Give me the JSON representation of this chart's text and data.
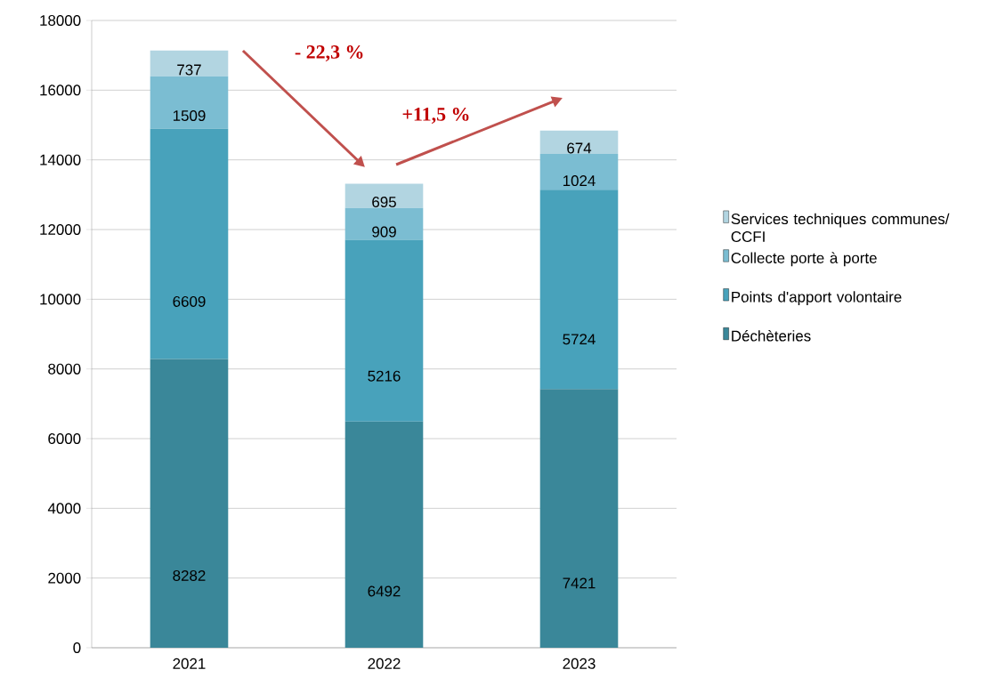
{
  "chart_data": {
    "type": "bar",
    "stacked": true,
    "categories": [
      "2021",
      "2022",
      "2023"
    ],
    "series": [
      {
        "name": "Déchèteries",
        "color": "#3a8799",
        "values": [
          8282,
          6492,
          7421
        ]
      },
      {
        "name": "Points d'apport volontaire",
        "color": "#48a2bb",
        "values": [
          6609,
          5216,
          5724
        ]
      },
      {
        "name": "Collecte porte à porte",
        "color": "#7bbdd2",
        "values": [
          1509,
          909,
          1024
        ]
      },
      {
        "name": "Services techniques communes/ CCFI",
        "color": "#b2d5e1",
        "values": [
          737,
          695,
          674
        ]
      }
    ],
    "ylim": [
      0,
      18000
    ],
    "yticks": [
      0,
      2000,
      4000,
      6000,
      8000,
      10000,
      12000,
      14000,
      16000,
      18000
    ],
    "grid": "y",
    "legend": "right",
    "data_labels": true,
    "annotations": [
      "- 22,3 %",
      "+11,5 %"
    ]
  }
}
